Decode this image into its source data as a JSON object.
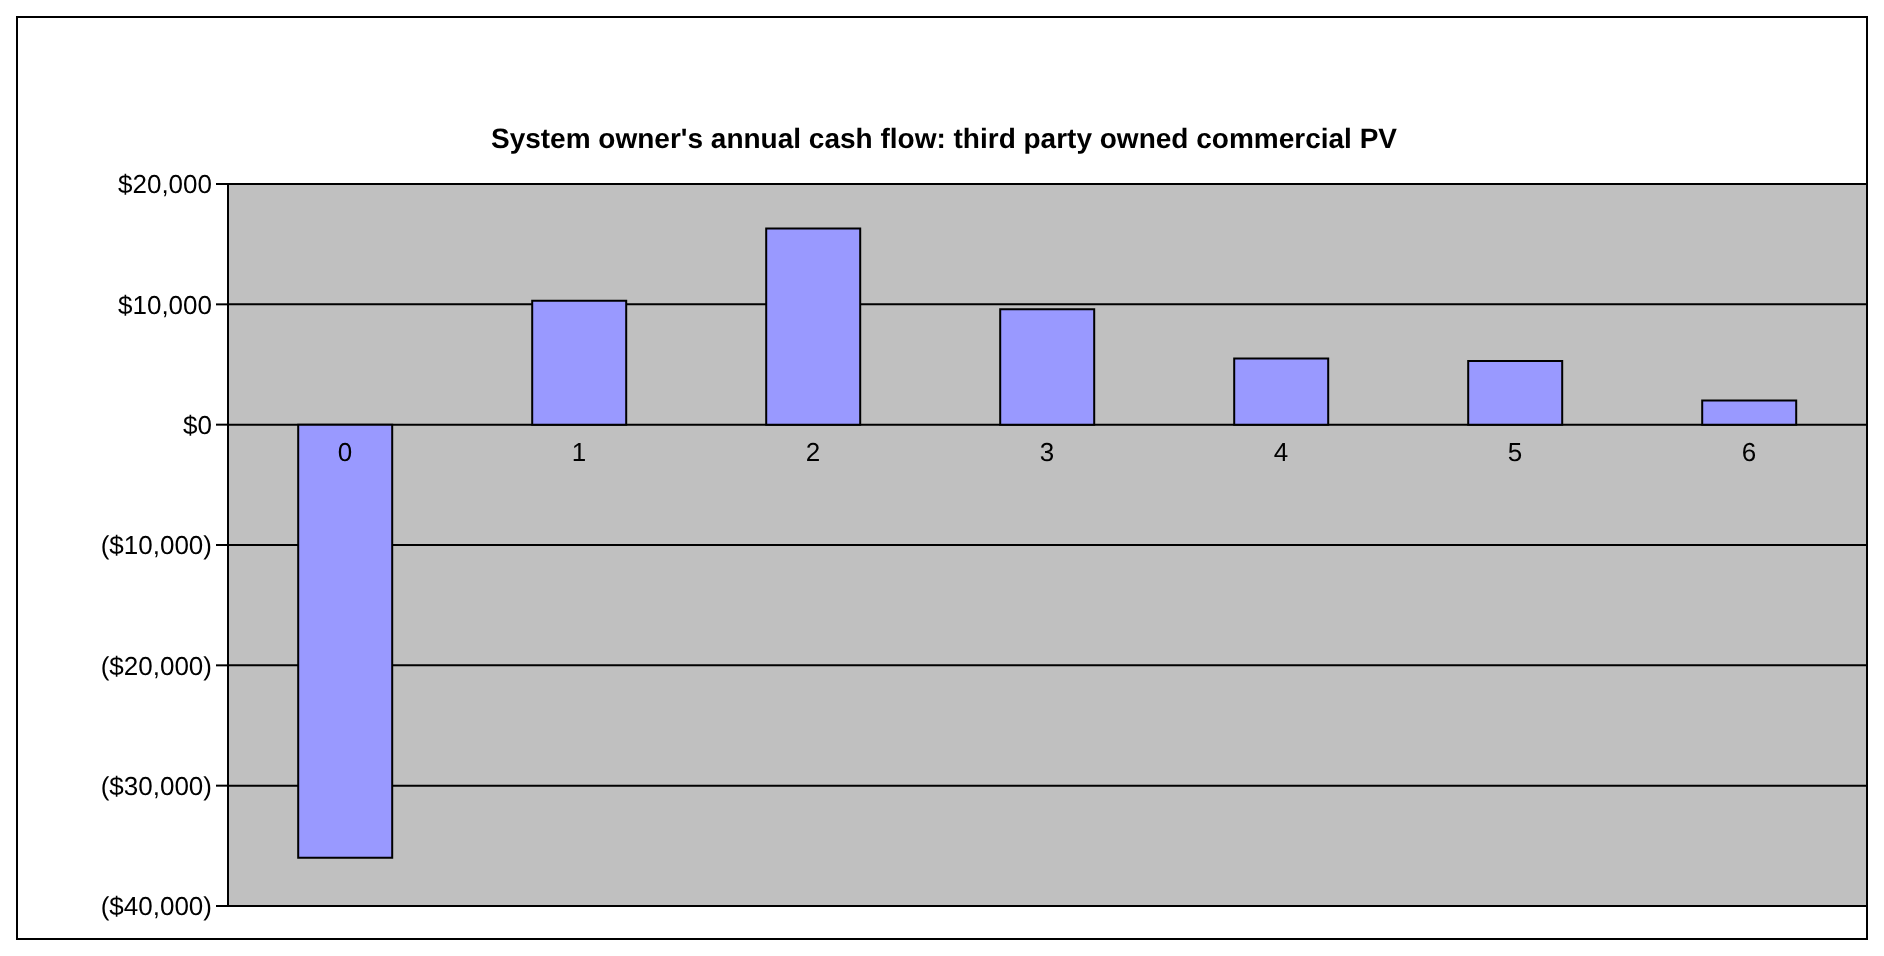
{
  "chart_data": {
    "type": "bar",
    "title": "System owner's annual cash flow: third party owned commercial PV",
    "categories": [
      "0",
      "1",
      "2",
      "3",
      "4",
      "5",
      "6"
    ],
    "values": [
      -36000,
      10300,
      16300,
      9600,
      5500,
      5300,
      2000
    ],
    "color": "#9999ff",
    "ylim": [
      -40000,
      20000
    ],
    "yticks": [
      {
        "value": -40000,
        "label": "($40,000)"
      },
      {
        "value": -30000,
        "label": "($30,000)"
      },
      {
        "value": -20000,
        "label": "($20,000)"
      },
      {
        "value": -10000,
        "label": "($10,000)"
      },
      {
        "value": 0,
        "label": "$0"
      },
      {
        "value": 10000,
        "label": "$10,000"
      },
      {
        "value": 20000,
        "label": "$20,000"
      }
    ],
    "grid": "y",
    "legend": false
  }
}
